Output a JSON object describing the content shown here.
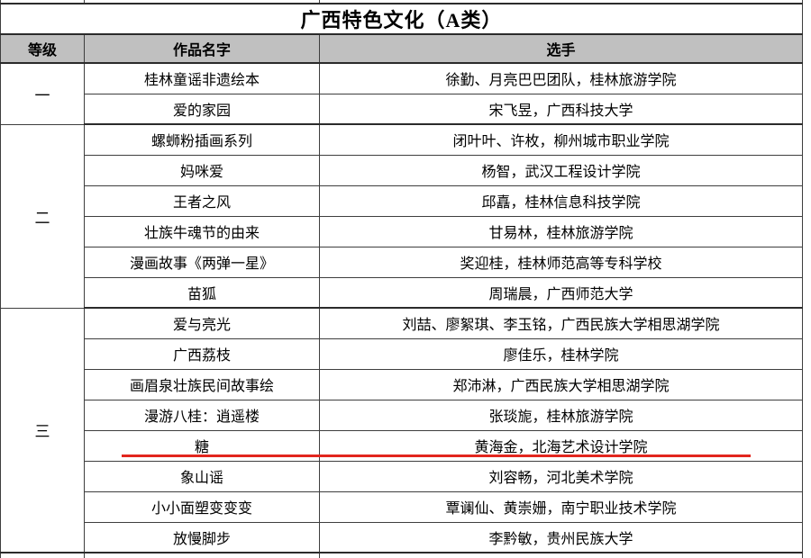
{
  "page": {
    "title": "广西特色文化（A类）"
  },
  "table": {
    "columns": [
      "等级",
      "作品名字",
      "选手"
    ],
    "groups": [
      {
        "grade": "一",
        "rows": [
          {
            "work": "桂林童谣非遗绘本",
            "contestant": "徐勤、月亮巴巴团队，桂林旅游学院"
          },
          {
            "work": "爱的家园",
            "contestant": "宋飞昱，广西科技大学"
          }
        ]
      },
      {
        "grade": "二",
        "rows": [
          {
            "work": "螺蛳粉插画系列",
            "contestant": "闭叶叶、许枚，柳州城市职业学院"
          },
          {
            "work": "妈咪爱",
            "contestant": "杨智，武汉工程设计学院"
          },
          {
            "work": "王者之风",
            "contestant": "邱嚞，桂林信息科技学院"
          },
          {
            "work": "壮族牛魂节的由来",
            "contestant": "甘易林，桂林旅游学院"
          },
          {
            "work": "漫画故事《两弹一星》",
            "contestant": "奖迎桂，桂林师范高等专科学校"
          },
          {
            "work": "苗狐",
            "contestant": "周瑞晨，广西师范大学"
          }
        ]
      },
      {
        "grade": "三",
        "rows": [
          {
            "work": "爱与亮光",
            "contestant": "刘喆、廖絮琪、李玉铭，广西民族大学相思湖学院"
          },
          {
            "work": "广西荔枝",
            "contestant": "廖佳乐，桂林学院"
          },
          {
            "work": "画眉泉壮族民间故事绘",
            "contestant": "郑沛淋，广西民族大学相思湖学院"
          },
          {
            "work": "漫游八桂：逍遥楼",
            "contestant": "张琰旎，桂林旅游学院"
          },
          {
            "work": "糖",
            "contestant": "黄海金，北海艺术设计学院",
            "underline": true
          },
          {
            "work": "象山谣",
            "contestant": "刘容畅，河北美术学院"
          },
          {
            "work": "小小面塑变变变",
            "contestant": "覃谰仙、黄崇姗，南宁职业技术学院"
          },
          {
            "work": "放慢脚步",
            "contestant": "李黔敏，贵州民族大学"
          }
        ]
      }
    ],
    "annotation": {
      "type": "red-underline",
      "color": "#e2261e"
    }
  },
  "colors": {
    "header_bg": "#c0c0c0",
    "border": "#3e3e3e",
    "border_strong": "#2b2b2b",
    "text": "#000000"
  }
}
